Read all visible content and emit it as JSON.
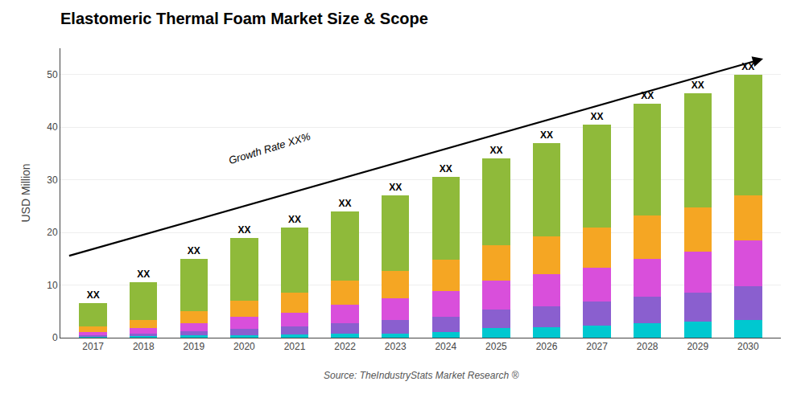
{
  "chart_data": {
    "type": "bar",
    "stacked": true,
    "title": "Elastomeric Thermal Foam Market Size & Scope",
    "ylabel": "USD Million",
    "categories": [
      "2017",
      "2018",
      "2019",
      "2020",
      "2021",
      "2022",
      "2023",
      "2024",
      "2025",
      "2026",
      "2027",
      "2028",
      "2029",
      "2030"
    ],
    "series": [
      {
        "color": "#00c8d0",
        "values": [
          0.2,
          0.3,
          0.4,
          0.5,
          0.6,
          0.7,
          0.8,
          1.0,
          1.8,
          2.0,
          2.3,
          2.8,
          3.0,
          3.3
        ]
      },
      {
        "color": "#8a5fcf",
        "values": [
          0.3,
          0.5,
          0.8,
          1.2,
          1.5,
          2.0,
          2.5,
          3.0,
          3.5,
          4.0,
          4.5,
          5.0,
          5.5,
          6.5
        ]
      },
      {
        "color": "#d94fdb",
        "values": [
          0.6,
          1.0,
          1.5,
          2.2,
          2.7,
          3.5,
          4.2,
          4.8,
          5.5,
          6.0,
          6.5,
          7.2,
          7.8,
          8.7
        ]
      },
      {
        "color": "#f5a623",
        "values": [
          1.0,
          1.5,
          2.3,
          3.2,
          3.8,
          4.7,
          5.2,
          6.0,
          6.7,
          7.2,
          7.7,
          8.2,
          8.4,
          8.5
        ]
      },
      {
        "color": "#8fba3a",
        "values": [
          4.4,
          7.2,
          10.0,
          11.9,
          12.4,
          13.1,
          14.3,
          15.7,
          16.5,
          17.8,
          19.5,
          21.3,
          21.8,
          23.0
        ]
      }
    ],
    "ylim": [
      0,
      55
    ],
    "yticks": [
      0,
      10,
      20,
      30,
      40,
      50
    ],
    "grid": true,
    "bar_label": "XX",
    "annotations": [
      "Growth Rate XX%"
    ],
    "source": "Source: TheIndustryStats Market Research ®"
  }
}
